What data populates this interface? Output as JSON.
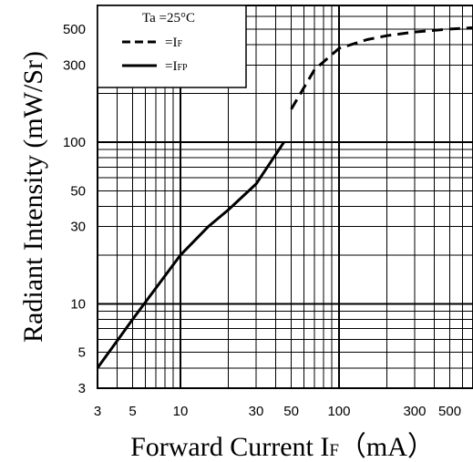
{
  "chart_data": {
    "type": "line",
    "xlabel": "Forward Current I",
    "xlabel_sub": "F",
    "xlabel_unit": "（mA）",
    "ylabel": "Radiant Intensity (mW/Sr)",
    "x_scale": "log",
    "y_scale": "log",
    "xlim": [
      3,
      700
    ],
    "ylim": [
      3,
      700
    ],
    "x_ticks": [
      3,
      5,
      10,
      30,
      50,
      100,
      300,
      500
    ],
    "x_tick_labels": [
      "3",
      "5",
      "10",
      "30",
      "50",
      "100",
      "300",
      "500"
    ],
    "y_ticks": [
      3,
      5,
      10,
      30,
      50,
      100,
      300,
      500
    ],
    "y_tick_labels": [
      "3",
      "5",
      "10",
      "30",
      "50",
      "100",
      "300",
      "500"
    ],
    "grid": true,
    "legend": {
      "title": "Ta =25°C",
      "placement": "top-left",
      "entries": [
        {
          "label": "=I",
          "sub": "F",
          "style": "dashed"
        },
        {
          "label": "=I",
          "sub": "FP",
          "style": "solid"
        }
      ]
    },
    "series": [
      {
        "style": "solid",
        "x": [
          3,
          5,
          10,
          15,
          20,
          30,
          45
        ],
        "y": [
          4,
          8,
          20,
          30,
          38,
          55,
          100
        ]
      },
      {
        "style": "dashed",
        "x": [
          50,
          70,
          100,
          150,
          200,
          300,
          500,
          700
        ],
        "y": [
          160,
          280,
          380,
          430,
          455,
          480,
          500,
          510
        ]
      }
    ]
  }
}
